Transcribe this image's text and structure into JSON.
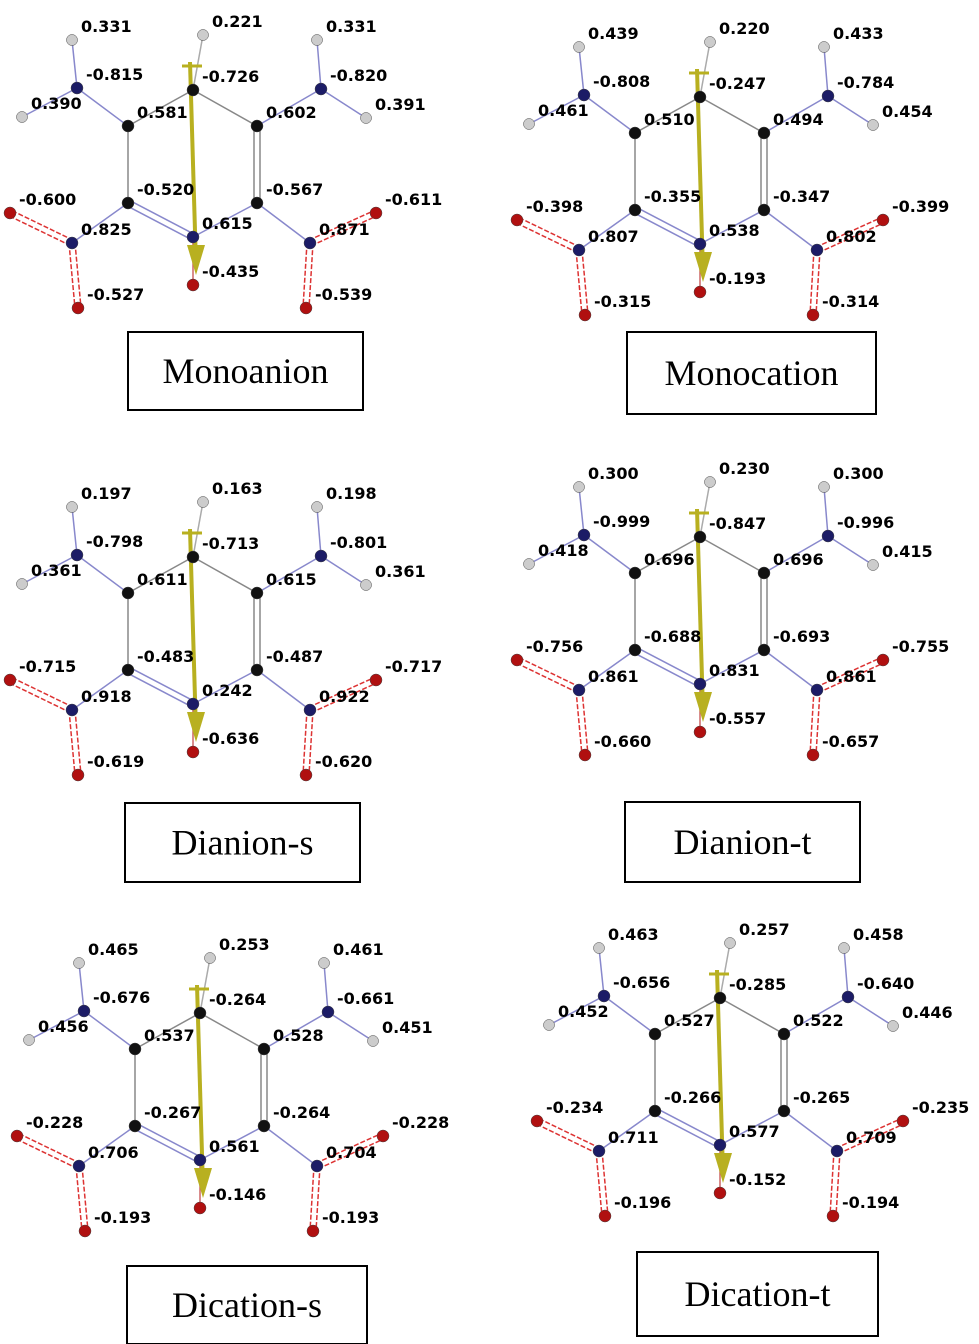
{
  "panels": [
    {
      "name": "Monoanion",
      "charges": [
        "0.221",
        "-0.726",
        "0.331",
        "-0.815",
        "0.390",
        "0.331",
        "-0.820",
        "0.391",
        "0.581",
        "0.602",
        "-0.520",
        "-0.567",
        "0.615",
        "-0.435",
        "-0.600",
        "0.825",
        "-0.527",
        "-0.611",
        "0.871",
        "-0.539"
      ]
    },
    {
      "name": "Monocation",
      "charges": [
        "0.220",
        "-0.247",
        "0.439",
        "-0.808",
        "0.461",
        "0.433",
        "-0.784",
        "0.454",
        "0.510",
        "0.494",
        "-0.355",
        "-0.347",
        "0.538",
        "-0.193",
        "-0.398",
        "0.807",
        "-0.315",
        "-0.399",
        "0.802",
        "-0.314"
      ]
    },
    {
      "name": "Dianion-s",
      "charges": [
        "0.163",
        "-0.713",
        "0.197",
        "-0.798",
        "0.361",
        "0.198",
        "-0.801",
        "0.361",
        "0.611",
        "0.615",
        "-0.483",
        "-0.487",
        "0.242",
        "-0.636",
        "-0.715",
        "0.918",
        "-0.619",
        "-0.717",
        "0.922",
        "-0.620"
      ]
    },
    {
      "name": "Dianion-t",
      "charges": [
        "0.230",
        "-0.847",
        "0.300",
        "-0.999",
        "0.418",
        "0.300",
        "-0.996",
        "0.415",
        "0.696",
        "0.696",
        "-0.688",
        "-0.693",
        "0.831",
        "-0.557",
        "-0.756",
        "0.861",
        "-0.660",
        "-0.755",
        "0.861",
        "-0.657"
      ]
    },
    {
      "name": "Dication-s",
      "charges": [
        "0.253",
        "-0.264",
        "0.465",
        "-0.676",
        "0.456",
        "0.461",
        "-0.661",
        "0.451",
        "0.537",
        "0.528",
        "-0.267",
        "-0.264",
        "0.561",
        "-0.146",
        "-0.228",
        "0.706",
        "-0.193",
        "-0.228",
        "0.704",
        "-0.193"
      ]
    },
    {
      "name": "Dication-t",
      "charges": [
        "0.257",
        "-0.285",
        "0.463",
        "-0.656",
        "0.452",
        "0.458",
        "-0.640",
        "0.446",
        "0.527",
        "0.522",
        "-0.266",
        "-0.265",
        "0.577",
        "-0.152",
        "-0.234",
        "0.711",
        "-0.196",
        "-0.235",
        "0.709",
        "-0.194"
      ]
    }
  ]
}
